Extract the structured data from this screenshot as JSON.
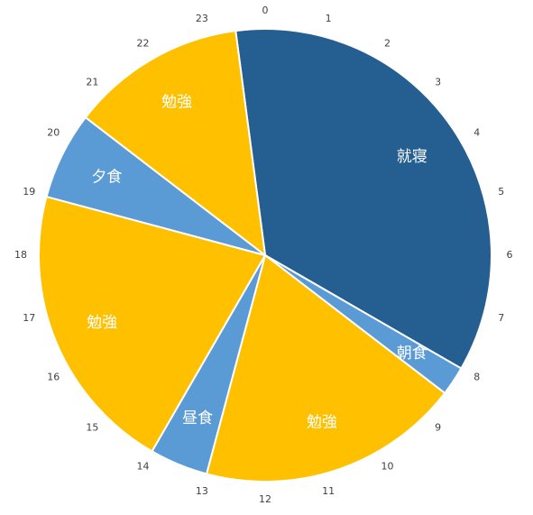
{
  "chart_data": {
    "type": "pie",
    "categories": [
      "就寝",
      "朝食",
      "勉強",
      "昼食",
      "勉強",
      "夕食",
      "勉強"
    ],
    "values": [
      8.5,
      0.5,
      4.5,
      1,
      5,
      1.5,
      3
    ],
    "colors": [
      "#255e91",
      "#5b9bd5",
      "#ffc000",
      "#5b9bd5",
      "#ffc000",
      "#5b9bd5",
      "#ffc000"
    ],
    "hour_labels": [
      0,
      1,
      2,
      3,
      4,
      5,
      6,
      7,
      8,
      9,
      10,
      11,
      12,
      13,
      14,
      15,
      16,
      17,
      18,
      19,
      20,
      21,
      22,
      23
    ]
  }
}
